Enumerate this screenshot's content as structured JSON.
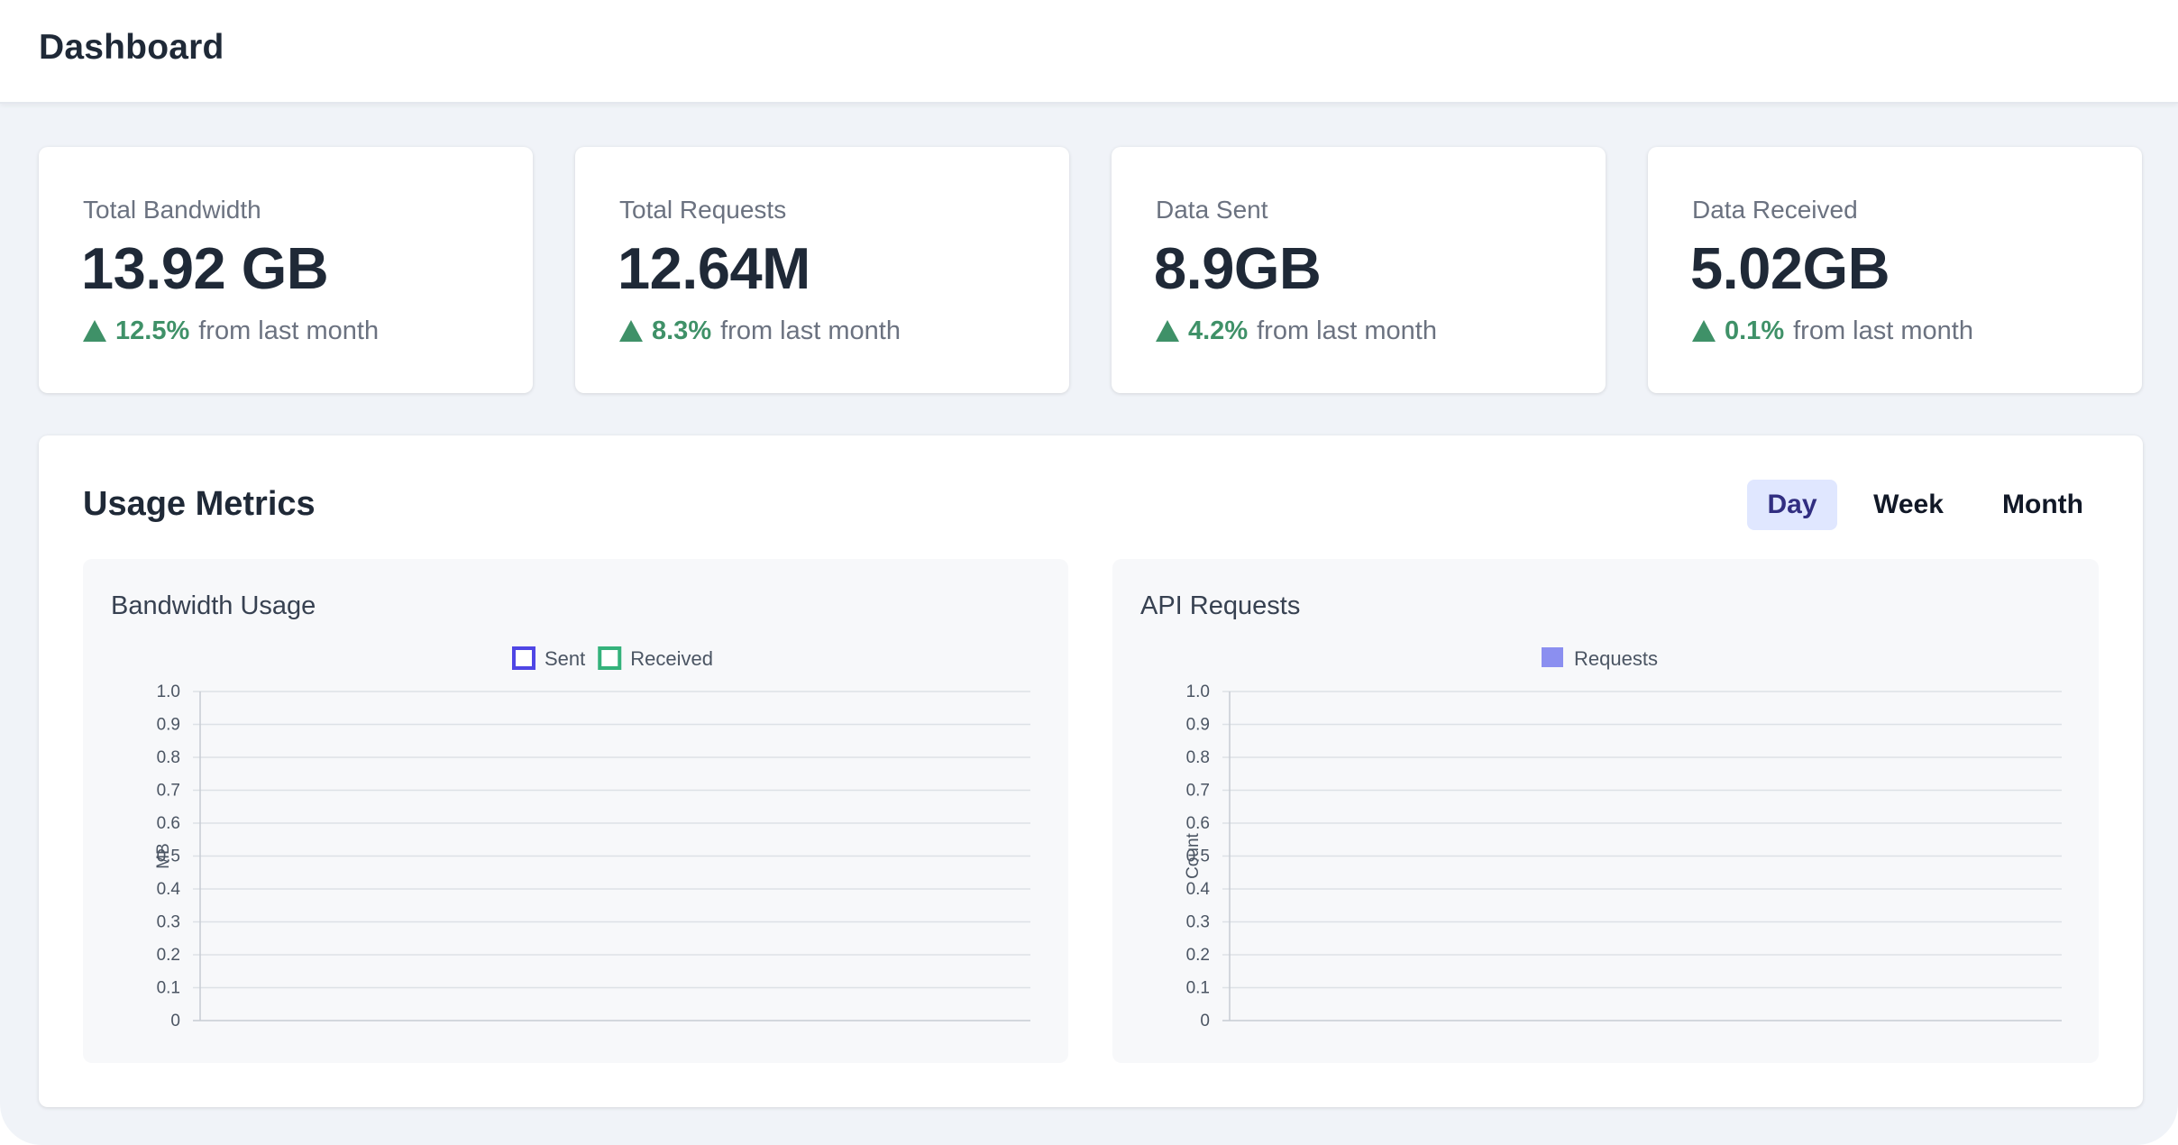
{
  "header": {
    "title": "Dashboard"
  },
  "stats": [
    {
      "label": "Total Bandwidth",
      "value": "13.92 GB",
      "change": "12.5%",
      "suffix": "from last month"
    },
    {
      "label": "Total Requests",
      "value": "12.64M",
      "change": "8.3%",
      "suffix": "from last month"
    },
    {
      "label": "Data Sent",
      "value": "8.9GB",
      "change": "4.2%",
      "suffix": "from last month"
    },
    {
      "label": "Data Received",
      "value": "5.02GB",
      "change": "0.1%",
      "suffix": "from last month"
    }
  ],
  "metrics": {
    "title": "Usage Metrics",
    "ranges": [
      "Day",
      "Week",
      "Month"
    ],
    "active_range": "Day"
  },
  "colors": {
    "positive": "#3f9168",
    "sent": "#4f46e5",
    "received": "#34b27b",
    "requests": "#8b8ff0"
  },
  "chart_data": [
    {
      "type": "line",
      "title": "Bandwidth Usage",
      "ylabel": "MB",
      "xlabel": "",
      "ylim": [
        0,
        1.0
      ],
      "yticks": [
        "0",
        "0.1",
        "0.2",
        "0.3",
        "0.4",
        "0.5",
        "0.6",
        "0.7",
        "0.8",
        "0.9",
        "1.0"
      ],
      "grid": true,
      "legend_position": "top",
      "series": [
        {
          "name": "Sent",
          "values": []
        },
        {
          "name": "Received",
          "values": []
        }
      ]
    },
    {
      "type": "bar",
      "title": "API Requests",
      "ylabel": "Count",
      "xlabel": "",
      "ylim": [
        0,
        1.0
      ],
      "yticks": [
        "0",
        "0.1",
        "0.2",
        "0.3",
        "0.4",
        "0.5",
        "0.6",
        "0.7",
        "0.8",
        "0.9",
        "1.0"
      ],
      "grid": true,
      "legend_position": "top",
      "series": [
        {
          "name": "Requests",
          "values": []
        }
      ]
    }
  ]
}
